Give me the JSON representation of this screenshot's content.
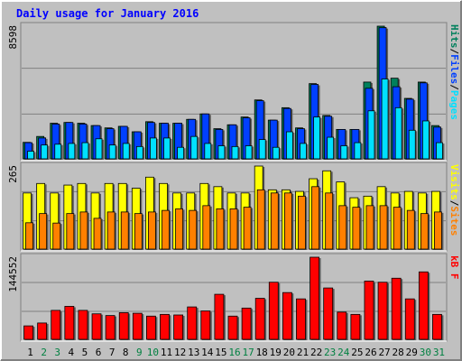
{
  "chart_data": {
    "type": "bar",
    "title": "Daily usage for January 2016",
    "categories": [
      "1",
      "2",
      "3",
      "4",
      "5",
      "6",
      "7",
      "8",
      "9",
      "10",
      "11",
      "12",
      "13",
      "14",
      "15",
      "16",
      "17",
      "18",
      "19",
      "20",
      "21",
      "22",
      "23",
      "24",
      "25",
      "26",
      "27",
      "28",
      "29",
      "30",
      "31"
    ],
    "category_colors": [
      "#000000",
      "#008040",
      "#008040",
      "#000000",
      "#000000",
      "#000000",
      "#000000",
      "#000000",
      "#008040",
      "#008040",
      "#000000",
      "#000000",
      "#000000",
      "#000000",
      "#000000",
      "#008040",
      "#008040",
      "#000000",
      "#000000",
      "#000000",
      "#000000",
      "#000000",
      "#008040",
      "#008040",
      "#000000",
      "#000000",
      "#000000",
      "#000000",
      "#000000",
      "#008040",
      "#008040"
    ],
    "panels": [
      {
        "ylim": [
          0,
          8598
        ],
        "yticks": [
          8598
        ],
        "series": [
          {
            "name": "Hits",
            "color": "#00805c",
            "values": [
              1120,
              1500,
              2350,
              2400,
              2350,
              2200,
              2050,
              2150,
              1800,
              2450,
              2350,
              2350,
              2600,
              2950,
              2000,
              2250,
              2750,
              3850,
              2550,
              3350,
              2050,
              4900,
              2850,
              1950,
              1950,
              5000,
              8598,
              5250,
              3950,
              5000,
              2200
            ]
          },
          {
            "name": "Files",
            "color": "#0040ff",
            "values": [
              1100,
              1400,
              2300,
              2400,
              2300,
              2200,
              2000,
              2150,
              1800,
              2400,
              2350,
              2350,
              2600,
              2950,
              1950,
              2250,
              2700,
              3800,
              2550,
              3300,
              2000,
              4850,
              2800,
              1950,
              1950,
              4600,
              8500,
              4700,
              3900,
              4950,
              2100
            ]
          },
          {
            "name": "Pages",
            "color": "#00e0ff",
            "values": [
              550,
              950,
              1000,
              1050,
              1100,
              1350,
              950,
              1050,
              850,
              1400,
              1400,
              800,
              1500,
              1050,
              900,
              850,
              900,
              1300,
              800,
              1800,
              1050,
              2750,
              1450,
              900,
              1100,
              3150,
              5200,
              3350,
              1900,
              2500,
              1100
            ]
          }
        ]
      },
      {
        "ylim": [
          0,
          265
        ],
        "yticks": [
          265
        ],
        "series": [
          {
            "name": "Visits",
            "color": "#ffff00",
            "values": [
              180,
              210,
              180,
              205,
              210,
              180,
              210,
              210,
              195,
              230,
              210,
              180,
              180,
              210,
              200,
              180,
              180,
              265,
              190,
              190,
              185,
              225,
              250,
              215,
              165,
              170,
              200,
              180,
              185,
              180,
              185
            ]
          },
          {
            "name": "Sites",
            "color": "#ff8000",
            "values": [
              86,
              115,
              85,
              115,
              120,
              100,
              120,
              120,
              115,
              120,
              125,
              130,
              125,
              140,
              130,
              130,
              135,
              190,
              180,
              180,
              170,
              200,
              180,
              140,
              135,
              140,
              140,
              135,
              125,
              115,
              120
            ]
          }
        ]
      },
      {
        "ylim": [
          0,
          144552
        ],
        "yticks": [
          144552
        ],
        "series": [
          {
            "name": "kB F",
            "color": "#ff0000",
            "values": [
              25000,
              30000,
              52000,
              59000,
              52000,
              46000,
              43000,
              48000,
              47000,
              42000,
              45000,
              44000,
              58000,
              51000,
              80000,
              42000,
              56000,
              73000,
              101000,
              83000,
              72000,
              144552,
              91000,
              49000,
              45000,
              103000,
              101000,
              108000,
              72000,
              119000,
              45000
            ]
          }
        ]
      }
    ]
  }
}
